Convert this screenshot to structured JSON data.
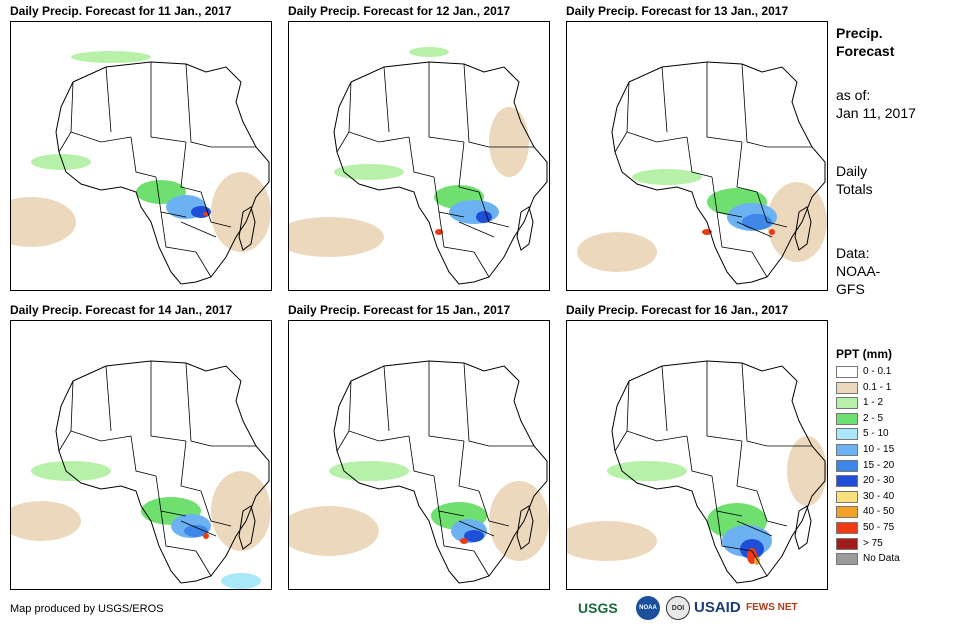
{
  "panels": [
    {
      "title": "Daily Precip. Forecast for 11 Jan., 2017",
      "day": "11"
    },
    {
      "title": "Daily Precip. Forecast for 12 Jan., 2017",
      "day": "12"
    },
    {
      "title": "Daily Precip. Forecast for 13 Jan., 2017",
      "day": "13"
    },
    {
      "title": "Daily Precip. Forecast for 14 Jan., 2017",
      "day": "14"
    },
    {
      "title": "Daily Precip. Forecast for 15 Jan., 2017",
      "day": "15"
    },
    {
      "title": "Daily Precip. Forecast for 16 Jan., 2017",
      "day": "16"
    }
  ],
  "sidebar": {
    "title_line1": "Precip.",
    "title_line2": "Forecast",
    "asof_label": "as of:",
    "asof_date": "Jan 11, 2017",
    "totals_line1": "Daily",
    "totals_line2": "Totals",
    "data_line1": "Data:",
    "data_line2": "NOAA-",
    "data_line3": "GFS"
  },
  "legend": {
    "title": "PPT (mm)",
    "items": [
      {
        "label": "0 - 0.1",
        "color": "#ffffff"
      },
      {
        "label": "0.1 - 1",
        "color": "#ecd9bd"
      },
      {
        "label": "1 - 2",
        "color": "#b7f0a8"
      },
      {
        "label": "2 - 5",
        "color": "#6fe06f"
      },
      {
        "label": "5 - 10",
        "color": "#a8e8f8"
      },
      {
        "label": "10 - 15",
        "color": "#6cb2f2"
      },
      {
        "label": "15 - 20",
        "color": "#3e86e8"
      },
      {
        "label": "20 - 30",
        "color": "#1f4fd8"
      },
      {
        "label": "30 - 40",
        "color": "#fbe07a"
      },
      {
        "label": "40 - 50",
        "color": "#f4a12a"
      },
      {
        "label": "50 - 75",
        "color": "#ec3b14"
      },
      {
        "label": "> 75",
        "color": "#a31d1d"
      },
      {
        "label": "No Data",
        "color": "#9b9b9b"
      }
    ]
  },
  "footer": {
    "credit": "Map produced by USGS/EROS",
    "logos": [
      "USGS",
      "NOAA",
      "DOI",
      "USAID",
      "FEWS NET"
    ]
  }
}
